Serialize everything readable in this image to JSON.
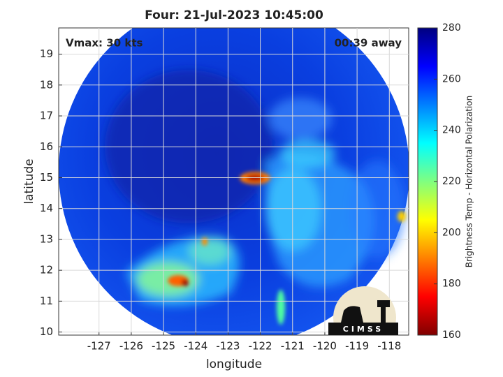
{
  "chart_data": {
    "type": "image",
    "title": "Four: 21-Jul-2023 10:45:00",
    "annotations": [
      "Vmax: 30 kts",
      "00:39 away"
    ],
    "x_label": "longitude",
    "y_label": "latitude",
    "xlim": [
      -128.25,
      -117.4
    ],
    "xticks": [
      -127,
      -126,
      -125,
      -124,
      -123,
      -122,
      -121,
      -120,
      -119,
      -118
    ],
    "ylim": [
      9.9,
      19.85
    ],
    "yticks": [
      10,
      11,
      12,
      13,
      14,
      15,
      16,
      17,
      18,
      19
    ],
    "grid": true,
    "colorbar": {
      "label": "Brightness Temp - Horizontal Polarization",
      "lim": [
        160,
        280
      ],
      "ticks": [
        160,
        180,
        200,
        220,
        240,
        260,
        280
      ],
      "colormap": [
        "#800000",
        "#ff0000",
        "#ff8000",
        "#ffff00",
        "#80ff80",
        "#00ffff",
        "#0080ff",
        "#0000ff",
        "#000080"
      ]
    },
    "logo": "CIMSS"
  }
}
